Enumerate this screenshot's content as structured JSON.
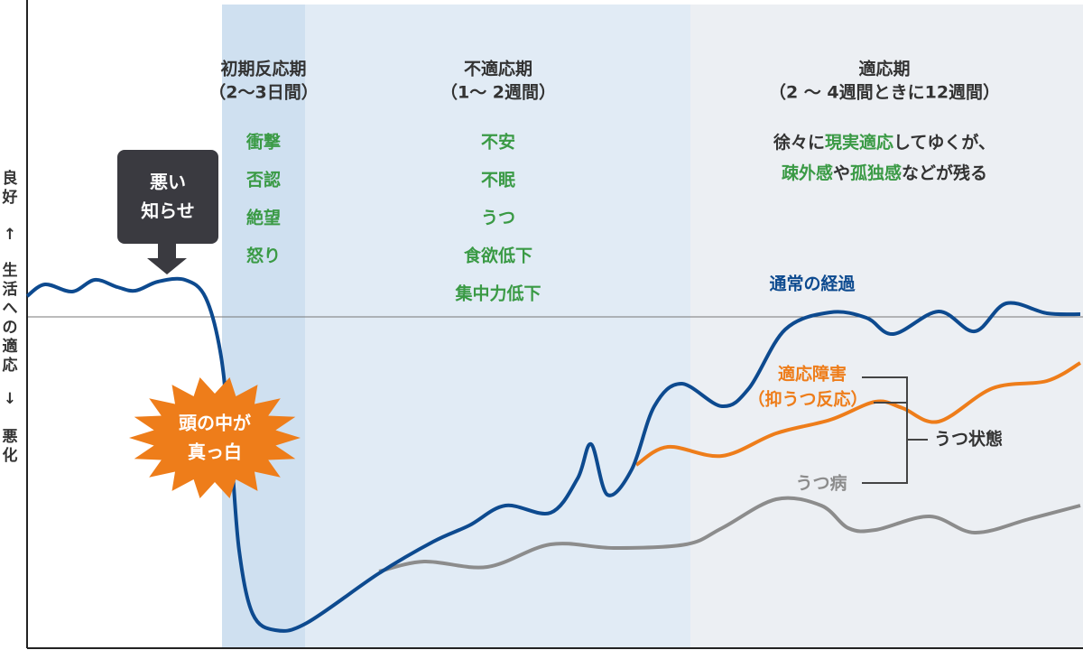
{
  "y_axis": {
    "top": "良好",
    "up_arrow": "↑",
    "label": "生活への適応",
    "down_arrow": "↓",
    "bottom": "悪化"
  },
  "phases": [
    {
      "name": "初期反応期",
      "duration": "（2～3日間）",
      "symptoms": [
        "衝撃",
        "否認",
        "絶望",
        "怒り"
      ]
    },
    {
      "name": "不適応期",
      "duration": "（1～ 2週間）",
      "symptoms": [
        "不安",
        "不眠",
        "うつ",
        "食欲低下",
        "集中力低下"
      ]
    },
    {
      "name": "適応期",
      "duration": "（2 ～ 4週間ときに12週間）",
      "description": [
        [
          {
            "text": "徐々に",
            "color": "#333333"
          },
          {
            "text": "現実適応",
            "color": "#3a9a45"
          },
          {
            "text": "してゆくが、",
            "color": "#333333"
          }
        ],
        [
          {
            "text": "疎外感",
            "color": "#3a9a45"
          },
          {
            "text": "や",
            "color": "#333333"
          },
          {
            "text": "孤独感",
            "color": "#3a9a45"
          },
          {
            "text": "などが残る",
            "color": "#333333"
          }
        ]
      ]
    }
  ],
  "callout": [
    "悪い",
    "知らせ"
  ],
  "burst": [
    "頭の中が",
    "真っ白"
  ],
  "curve_labels": {
    "normal": "通常の経過",
    "adjustment_disorder": "適応障害",
    "adjustment_disorder_note": "（抑うつ反応）",
    "depression": "うつ病",
    "depressive_state": "うつ状態"
  }
}
